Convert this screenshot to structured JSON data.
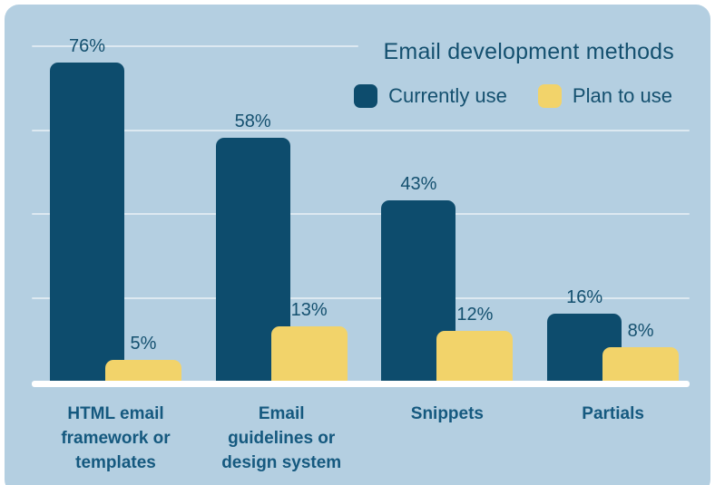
{
  "title": "Email development methods",
  "legend": [
    {
      "label": "Currently use",
      "color": "#0d4c6d"
    },
    {
      "label": "Plan to use",
      "color": "#f2d36a"
    }
  ],
  "chart_data": {
    "type": "bar",
    "title": "Email development methods",
    "categories": [
      "HTML email framework or templates",
      "Email guidelines or design system",
      "Snippets",
      "Partials"
    ],
    "category_lines": [
      [
        "HTML email",
        "framework or",
        "templates"
      ],
      [
        "Email",
        "guidelines or",
        "design system"
      ],
      [
        "Snippets"
      ],
      [
        "Partials"
      ]
    ],
    "series": [
      {
        "name": "Currently use",
        "color": "#0d4c6d",
        "values": [
          76,
          58,
          43,
          16
        ]
      },
      {
        "name": "Plan to use",
        "color": "#f2d36a",
        "values": [
          5,
          13,
          12,
          8
        ]
      }
    ],
    "value_suffix": "%",
    "xlabel": "",
    "ylabel": "",
    "ylim": [
      0,
      80
    ],
    "gridlines": [
      20,
      40,
      60,
      80
    ],
    "grid": true,
    "legend_position": "top-right",
    "colors": {
      "card_background": "#b4cfe1",
      "page_background": "#ffffff",
      "gridline": "rgba(255,255,255,0.55)",
      "axis_line": "#ffffff",
      "value_text": "#14506f",
      "title_text": "#14506f",
      "category_text": "#15597f"
    }
  }
}
